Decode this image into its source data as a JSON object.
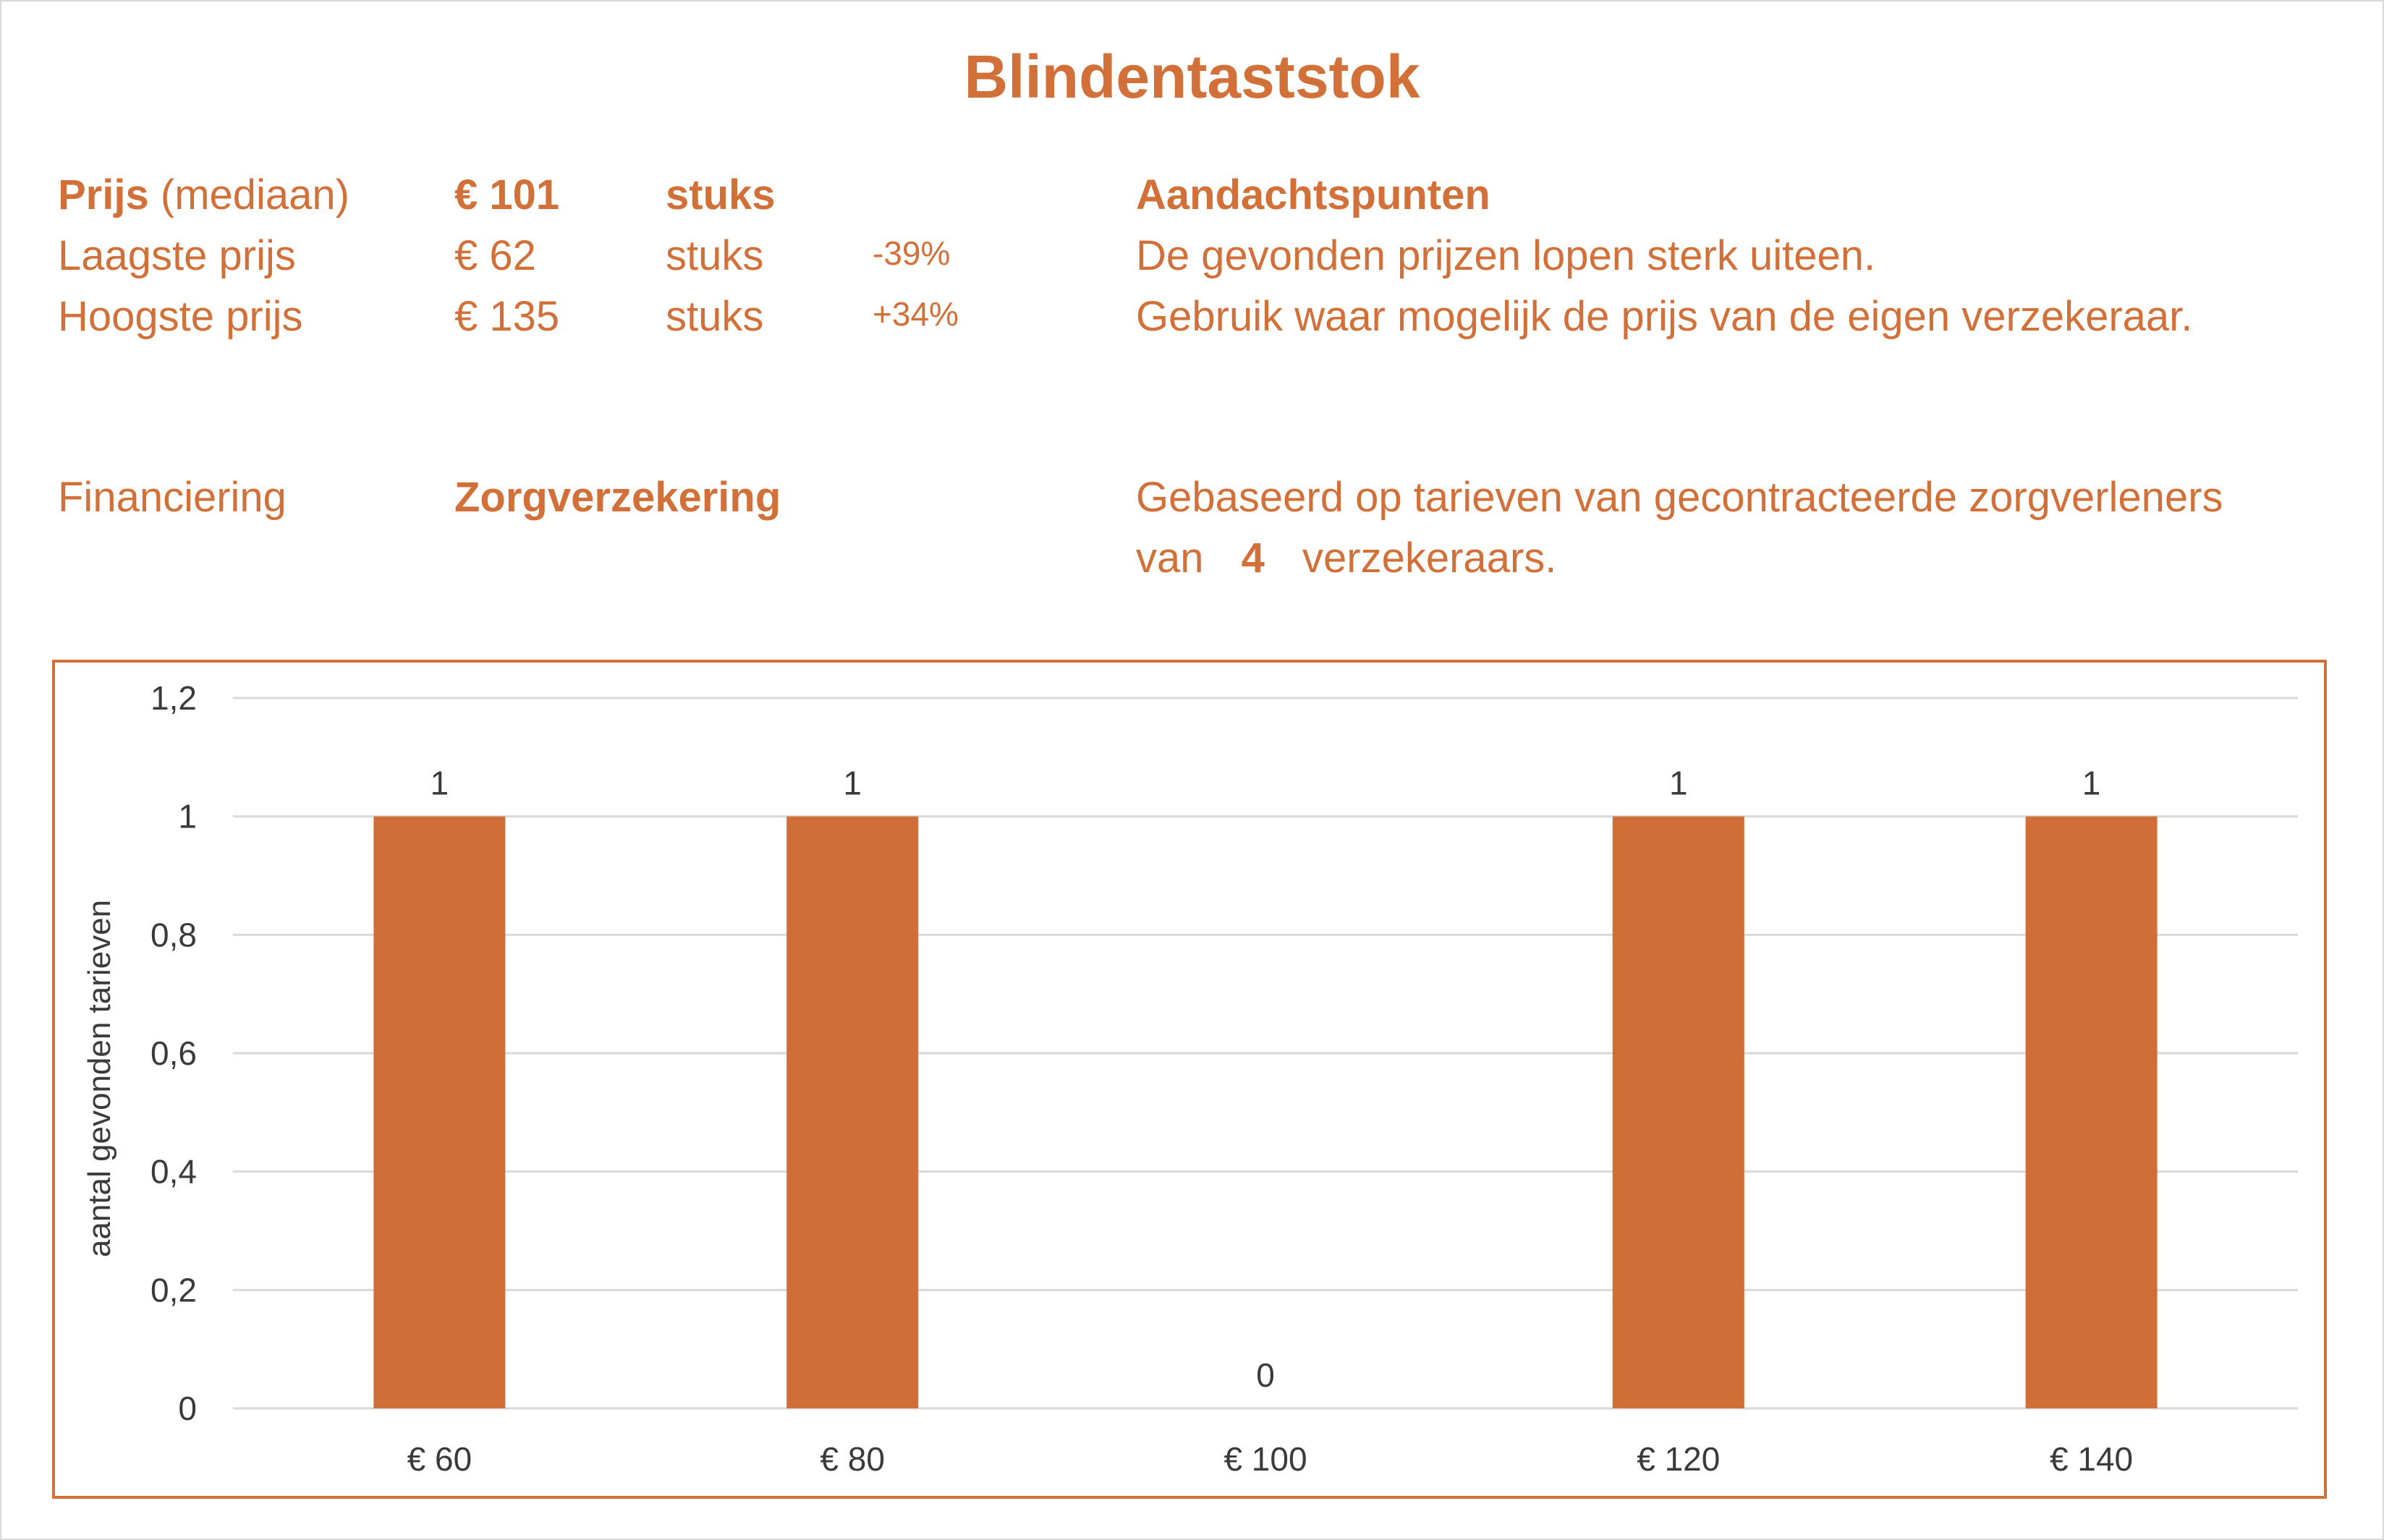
{
  "title": "Blindentaststok",
  "summary": {
    "median_label": "Prijs",
    "median_sub": "(mediaan)",
    "median_value": "€ 101",
    "median_unit": "stuks",
    "low_label": "Laagste prijs",
    "low_value": "€ 62",
    "low_unit": "stuks",
    "low_pct": "-39%",
    "high_label": "Hoogste prijs",
    "high_value": "€ 135",
    "high_unit": "stuks",
    "high_pct": "+34%",
    "financing_label": "Financiering",
    "financing_value": "Zorgverzekering"
  },
  "notes": {
    "heading": "Aandachtspunten",
    "line1": "De gevonden prijzen lopen sterk uiteen.",
    "line2": "Gebruik waar mogelijk de prijs van de eigen verzekeraar.",
    "basis_line1": "Gebaseerd op tarieven van gecontracteerde zorgverleners",
    "basis_van": "van",
    "basis_count": "4",
    "basis_suffix": "verzekeraars."
  },
  "colors": {
    "accent": "#d2703a",
    "bar": "#cf6f37",
    "grid": "#d9d9d9",
    "axis_text": "#3a3a3a"
  },
  "chart_data": {
    "type": "bar",
    "title": "",
    "xlabel": "",
    "ylabel": "aantal gevonden tarieven",
    "categories": [
      "€ 60",
      "€ 80",
      "€ 100",
      "€ 120",
      "€ 140"
    ],
    "values": [
      1,
      1,
      0,
      1,
      1
    ],
    "data_labels": [
      "1",
      "1",
      "0",
      "1",
      "1"
    ],
    "ylim": [
      0,
      1.2
    ],
    "yticks": [
      0,
      0.2,
      0.4,
      0.6,
      0.8,
      1,
      1.2
    ],
    "ytick_labels": [
      "0",
      "0,2",
      "0,4",
      "0,6",
      "0,8",
      "1",
      "1,2"
    ],
    "grid": true,
    "legend": "none"
  }
}
